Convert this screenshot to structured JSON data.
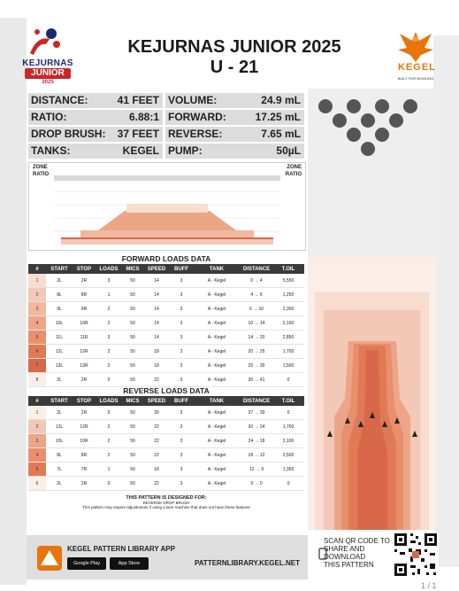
{
  "header": {
    "title_line1": "KEJURNAS JUNIOR 2025",
    "title_line2": "U - 21"
  },
  "logo_left": {
    "line1": "KEJURNAS",
    "line2": "JUNIOR",
    "line3": "2025"
  },
  "logo_right": {
    "brand": "KEGEL",
    "tagline": "BUILT FOR BOWLING"
  },
  "info": {
    "distance_label": "DISTANCE:",
    "distance": "41 FEET",
    "ratio_label": "RATIO:",
    "ratio": "6.88:1",
    "drop_label": "DROP BRUSH:",
    "drop": "37 FEET",
    "tanks_label": "TANKS:",
    "tanks": "KEGEL",
    "volume_label": "VOLUME:",
    "volume": "24.9 mL",
    "forward_label": "FORWARD:",
    "forward": "17.25 mL",
    "reverse_label": "REVERSE:",
    "reverse": "7.65 mL",
    "pump_label": "PUMP:",
    "pump": "50µL"
  },
  "chart": {
    "zone_label": "ZONE",
    "ratio_label": "RATIO"
  },
  "forward": {
    "title": "FORWARD LOADS DATA",
    "headers": [
      "#",
      "START",
      "STOP",
      "LOADS",
      "MICS",
      "SPEED",
      "BUFF",
      "TANK",
      "DISTANCE",
      "T.OIL"
    ],
    "rows": [
      [
        "1",
        "2L",
        "2R",
        "3",
        "50",
        "14",
        "3",
        "A - Kegel",
        "0 → 4",
        "5,550"
      ],
      [
        "2",
        "8L",
        "8R",
        "1",
        "50",
        "14",
        "3",
        "A - Kegel",
        "4 → 6",
        "1,250"
      ],
      [
        "3",
        "9L",
        "9R",
        "2",
        "50",
        "14",
        "3",
        "A - Kegel",
        "6 → 10",
        "2,300"
      ],
      [
        "4",
        "10L",
        "10R",
        "2",
        "50",
        "14",
        "3",
        "A - Kegel",
        "10 → 14",
        "2,100"
      ],
      [
        "5",
        "11L",
        "11R",
        "3",
        "50",
        "14",
        "3",
        "A - Kegel",
        "14 → 20",
        "2,850"
      ],
      [
        "6",
        "12L",
        "12R",
        "2",
        "50",
        "18",
        "3",
        "A - Kegel",
        "20 → 25",
        "1,700"
      ],
      [
        "7",
        "13L",
        "13R",
        "2",
        "50",
        "18",
        "3",
        "A - Kegel",
        "25 → 30",
        "1,500"
      ],
      [
        "8",
        "2L",
        "2R",
        "0",
        "50",
        "22",
        "3",
        "A - Kegel",
        "30 → 41",
        "0"
      ]
    ]
  },
  "reverse": {
    "title": "REVERSE LOADS DATA",
    "headers": [
      "#",
      "START",
      "STOP",
      "LOADS",
      "MICS",
      "SPEED",
      "BUFF",
      "TANK",
      "DISTANCE",
      "T.OIL"
    ],
    "rows": [
      [
        "1",
        "2L",
        "2R",
        "0",
        "50",
        "30",
        "3",
        "A - Kegel",
        "37 → 30",
        "0"
      ],
      [
        "2",
        "12L",
        "12R",
        "2",
        "50",
        "22",
        "3",
        "A - Kegel",
        "30 → 24",
        "1,700"
      ],
      [
        "3",
        "10L",
        "10R",
        "2",
        "50",
        "22",
        "3",
        "A - Kegel",
        "24 → 18",
        "2,100"
      ],
      [
        "4",
        "8L",
        "8R",
        "2",
        "50",
        "22",
        "3",
        "A - Kegel",
        "18 → 12",
        "2,500"
      ],
      [
        "5",
        "7L",
        "7R",
        "1",
        "50",
        "18",
        "3",
        "A - Kegel",
        "12 → 9",
        "1,350"
      ],
      [
        "6",
        "2L",
        "2R",
        "0",
        "50",
        "22",
        "3",
        "A - Kegel",
        "9 → 0",
        "0"
      ]
    ]
  },
  "designed": {
    "title": "THIS PATTERN IS DESIGNED FOR:",
    "item": "REVERSE DROP BRUSH",
    "note": "This pattern may require adjustments if using a lane machine that does not have these features"
  },
  "footer": {
    "app_title": "KEGEL PATTERN LIBRARY APP",
    "google": "Google Play",
    "apple": "App Store",
    "url": "PATTERNLIBRARY.KEGEL.NET"
  },
  "qr": {
    "l1": "SCAN QR CODE TO",
    "l2": "SHARE AND",
    "l3": "DOWNLOAD",
    "l4": "THIS PATTERN"
  },
  "page": {
    "num": "1 / 1"
  },
  "colors": {
    "row_fwd": [
      "#f7ddd2",
      "#f3c8b6",
      "#f0b89f",
      "#eda588",
      "#e98f6d",
      "#e07a55",
      "#d9674a",
      "#fbeee6"
    ],
    "row_rev": [
      "#fbeee6",
      "#f3c8b6",
      "#eda588",
      "#e98f6d",
      "#e07a55",
      "#fbeee6"
    ]
  }
}
